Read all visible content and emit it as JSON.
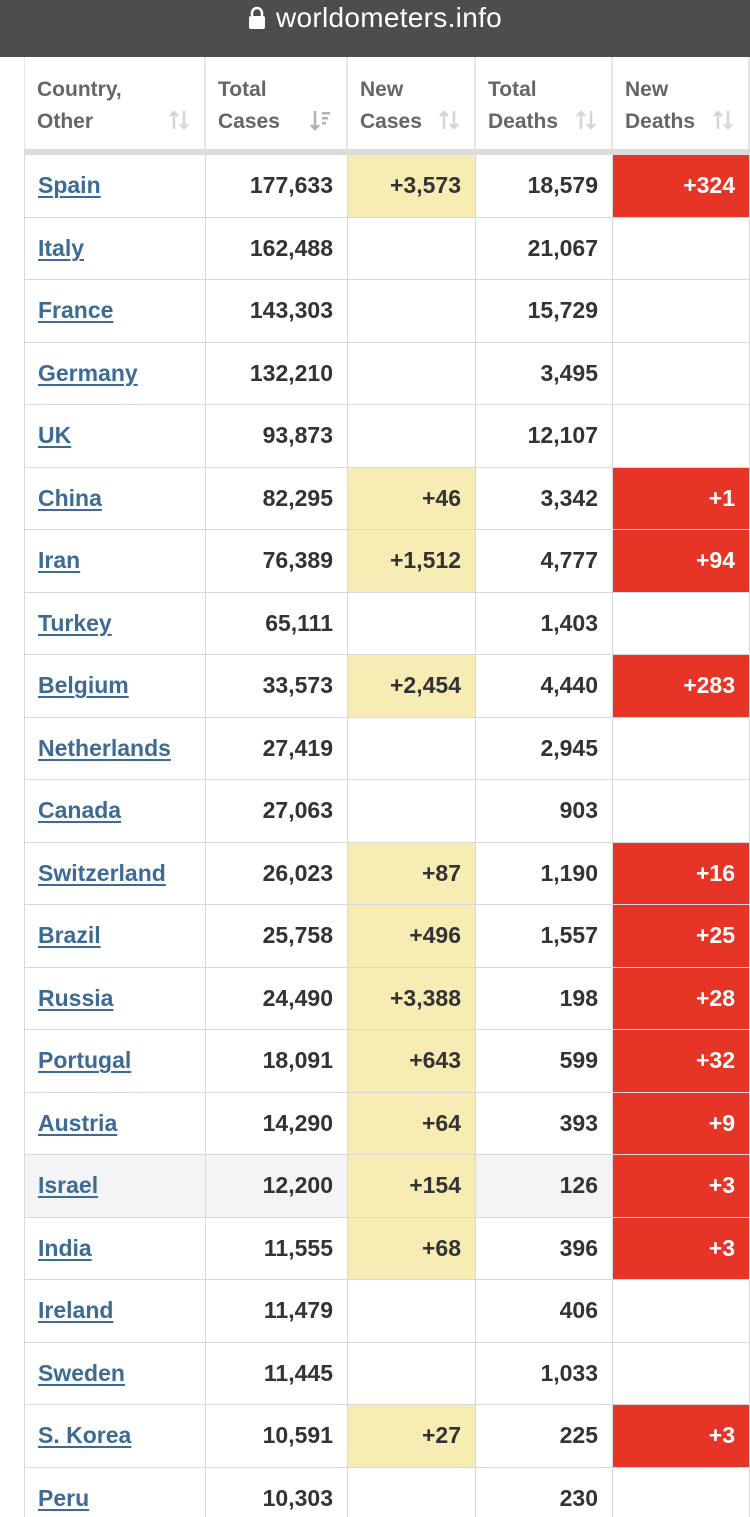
{
  "browser": {
    "url": "worldometers.info"
  },
  "table": {
    "headers": [
      {
        "line1": "Country,",
        "line2": "Other"
      },
      {
        "line1": "Total",
        "line2": "Cases"
      },
      {
        "line1": "New",
        "line2": "Cases"
      },
      {
        "line1": "Total",
        "line2": "Deaths"
      },
      {
        "line1": "New",
        "line2": "Deaths"
      }
    ],
    "rows": [
      {
        "country": "Spain",
        "total_cases": "177,633",
        "new_cases": "+3,573",
        "total_deaths": "18,579",
        "new_deaths": "+324"
      },
      {
        "country": "Italy",
        "total_cases": "162,488",
        "new_cases": "",
        "total_deaths": "21,067",
        "new_deaths": ""
      },
      {
        "country": "France",
        "total_cases": "143,303",
        "new_cases": "",
        "total_deaths": "15,729",
        "new_deaths": ""
      },
      {
        "country": "Germany",
        "total_cases": "132,210",
        "new_cases": "",
        "total_deaths": "3,495",
        "new_deaths": ""
      },
      {
        "country": "UK",
        "total_cases": "93,873",
        "new_cases": "",
        "total_deaths": "12,107",
        "new_deaths": ""
      },
      {
        "country": "China",
        "total_cases": "82,295",
        "new_cases": "+46",
        "total_deaths": "3,342",
        "new_deaths": "+1"
      },
      {
        "country": "Iran",
        "total_cases": "76,389",
        "new_cases": "+1,512",
        "total_deaths": "4,777",
        "new_deaths": "+94"
      },
      {
        "country": "Turkey",
        "total_cases": "65,111",
        "new_cases": "",
        "total_deaths": "1,403",
        "new_deaths": ""
      },
      {
        "country": "Belgium",
        "total_cases": "33,573",
        "new_cases": "+2,454",
        "total_deaths": "4,440",
        "new_deaths": "+283"
      },
      {
        "country": "Netherlands",
        "total_cases": "27,419",
        "new_cases": "",
        "total_deaths": "2,945",
        "new_deaths": ""
      },
      {
        "country": "Canada",
        "total_cases": "27,063",
        "new_cases": "",
        "total_deaths": "903",
        "new_deaths": ""
      },
      {
        "country": "Switzerland",
        "total_cases": "26,023",
        "new_cases": "+87",
        "total_deaths": "1,190",
        "new_deaths": "+16"
      },
      {
        "country": "Brazil",
        "total_cases": "25,758",
        "new_cases": "+496",
        "total_deaths": "1,557",
        "new_deaths": "+25"
      },
      {
        "country": "Russia",
        "total_cases": "24,490",
        "new_cases": "+3,388",
        "total_deaths": "198",
        "new_deaths": "+28"
      },
      {
        "country": "Portugal",
        "total_cases": "18,091",
        "new_cases": "+643",
        "total_deaths": "599",
        "new_deaths": "+32"
      },
      {
        "country": "Austria",
        "total_cases": "14,290",
        "new_cases": "+64",
        "total_deaths": "393",
        "new_deaths": "+9"
      },
      {
        "country": "Israel",
        "total_cases": "12,200",
        "new_cases": "+154",
        "total_deaths": "126",
        "new_deaths": "+3",
        "highlighted": true
      },
      {
        "country": "India",
        "total_cases": "11,555",
        "new_cases": "+68",
        "total_deaths": "396",
        "new_deaths": "+3"
      },
      {
        "country": "Ireland",
        "total_cases": "11,479",
        "new_cases": "",
        "total_deaths": "406",
        "new_deaths": ""
      },
      {
        "country": "Sweden",
        "total_cases": "11,445",
        "new_cases": "",
        "total_deaths": "1,033",
        "new_deaths": ""
      },
      {
        "country": "S. Korea",
        "total_cases": "10,591",
        "new_cases": "+27",
        "total_deaths": "225",
        "new_deaths": "+3"
      },
      {
        "country": "Peru",
        "total_cases": "10,303",
        "new_cases": "",
        "total_deaths": "230",
        "new_deaths": ""
      }
    ]
  },
  "colors": {
    "url_bar": "#4d4d4d",
    "link": "#3d6b95",
    "new_cases_bg": "#f8ecb5",
    "new_deaths_bg": "#e63526",
    "row_highlight": "#f3f4f5"
  },
  "icons": {
    "lock": "lock-icon",
    "sort": "sort-arrows-icon",
    "sort_active": "sort-desc-icon"
  }
}
